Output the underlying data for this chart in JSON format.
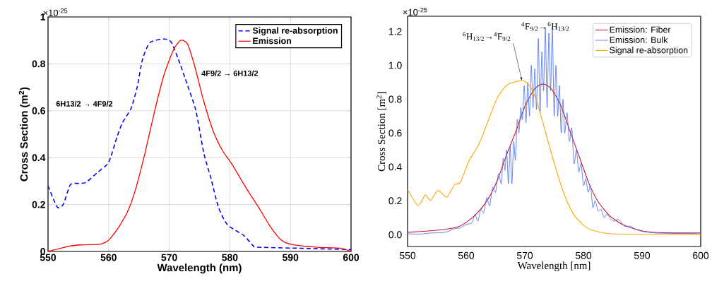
{
  "chart_data": [
    {
      "type": "line",
      "xlabel": "Wavelength (nm)",
      "ylabel": "Cross Section (m$^{2}$)",
      "xlim": [
        550,
        600
      ],
      "ylim": [
        0,
        1
      ],
      "xticks": [
        550,
        560,
        570,
        580,
        590,
        600
      ],
      "yticks": [
        0,
        0.2,
        0.4,
        0.6,
        0.8,
        1
      ],
      "grid": true,
      "legend": "top right",
      "marker": "none",
      "annotations": [
        "×10$^{-25}$",
        "6H13/2 → 4F9/2",
        "4F9/2 → 6H13/2"
      ],
      "series": [
        {
          "name": "Signal re-absorption",
          "color": "#0000ff",
          "line_style": "dashed",
          "x": [
            550,
            551.5,
            552.5,
            553.7,
            555.2,
            556.3,
            558.3,
            560,
            561.4,
            562.3,
            563.7,
            564.7,
            565.6,
            566.8,
            569.1,
            570.3,
            571.5,
            573,
            574.4,
            575.7,
            576.9,
            578.1,
            579.6,
            582.3,
            583.9,
            584.7,
            592.4,
            600
          ],
          "values": [
            0.28,
            0.19,
            0.2,
            0.285,
            0.29,
            0.295,
            0.34,
            0.38,
            0.49,
            0.55,
            0.61,
            0.7,
            0.82,
            0.89,
            0.906,
            0.894,
            0.82,
            0.71,
            0.6,
            0.42,
            0.31,
            0.19,
            0.114,
            0.068,
            0.023,
            0.018,
            0.013,
            0.008
          ]
        },
        {
          "name": "Emission",
          "color": "#ff0000",
          "line_style": "solid",
          "x": [
            550,
            553.6,
            555.6,
            558.3,
            559.4,
            560.2,
            561.8,
            563.3,
            564.5,
            566,
            567.6,
            569.1,
            570.7,
            571.9,
            573,
            574.2,
            575.7,
            577.3,
            578.8,
            580.4,
            582.7,
            584.7,
            586.6,
            588.5,
            590.5,
            594.4,
            598.3,
            600
          ],
          "values": [
            0,
            0.023,
            0.028,
            0.03,
            0.038,
            0.053,
            0.109,
            0.18,
            0.27,
            0.42,
            0.6,
            0.75,
            0.86,
            0.9,
            0.885,
            0.79,
            0.64,
            0.51,
            0.43,
            0.37,
            0.27,
            0.19,
            0.109,
            0.048,
            0.028,
            0.018,
            0.013,
            0
          ]
        }
      ]
    },
    {
      "type": "line",
      "xlabel": "Wavelength [nm]",
      "ylabel": "Cross Section [m$^{2}$]",
      "xlim": [
        550,
        600
      ],
      "ylim": [
        -0.07,
        1.29
      ],
      "xticks": [
        550,
        560,
        570,
        580,
        590,
        600
      ],
      "yticks": [
        {
          "value": 0,
          "label": "0.0"
        },
        0.2,
        0.4,
        0.6,
        0.8,
        {
          "value": 1,
          "label": "1.0"
        },
        1.2
      ],
      "grid": false,
      "legend": "top right",
      "marker": "none",
      "annotations": [
        "×10$^{-25}$",
        {
          "text": "$^{6}$H$_{13/2}$→$^{4}$F$_{9/2}$",
          "x": 569.5,
          "y": 0.91
        },
        "$^{4}$F$_{9/2}$→$^{6}$H$_{13/2}$"
      ],
      "series": [
        {
          "name": "Emission: Fiber",
          "color": "#d0103a",
          "line_style": "solid",
          "x": [
            550,
            553.2,
            556.4,
            558.8,
            560.4,
            562,
            563.7,
            565.3,
            566.9,
            568.5,
            570.1,
            571.7,
            573.1,
            574.5,
            576.1,
            577.7,
            579.3,
            580.9,
            582.5,
            584.5,
            586.9,
            590.2,
            594.2,
            600
          ],
          "values": [
            0.014,
            0.021,
            0.031,
            0.049,
            0.083,
            0.132,
            0.209,
            0.32,
            0.473,
            0.612,
            0.765,
            0.862,
            0.89,
            0.862,
            0.765,
            0.612,
            0.459,
            0.306,
            0.195,
            0.111,
            0.056,
            0.021,
            0.011,
            0.01
          ]
        },
        {
          "name": "Emission: Bulk",
          "color": "#4169e1",
          "line_style": "solid",
          "x": [
            550,
            552,
            554,
            556,
            557,
            558,
            559,
            560,
            561,
            561.5,
            562,
            562.5,
            563,
            563.5,
            564,
            564.5,
            565,
            565.5,
            566,
            566.3,
            566.6,
            566.9,
            567.2,
            567.5,
            567.8,
            568.1,
            568.4,
            568.7,
            569,
            569.3,
            569.6,
            569.9,
            570.2,
            570.5,
            570.8,
            571.1,
            571.4,
            571.7,
            572,
            572.3,
            572.6,
            572.9,
            573.2,
            573.5,
            573.8,
            574.1,
            574.4,
            574.7,
            575,
            575.3,
            575.6,
            575.9,
            576.2,
            576.5,
            576.8,
            577.2,
            577.6,
            578,
            578.4,
            578.8,
            579.2,
            579.6,
            580,
            580.4,
            580.8,
            581.2,
            581.6,
            582,
            582.5,
            583,
            583.5,
            584,
            585,
            586,
            587,
            588,
            589,
            590,
            592,
            595,
            600
          ],
          "values": [
            0.005,
            0.003,
            0.01,
            0.012,
            0.02,
            0.035,
            0.04,
            0.06,
            0.07,
            0.12,
            0.08,
            0.15,
            0.13,
            0.22,
            0.17,
            0.28,
            0.25,
            0.36,
            0.3,
            0.45,
            0.38,
            0.5,
            0.3,
            0.52,
            0.3,
            0.55,
            0.44,
            0.68,
            0.6,
            0.75,
            0.68,
            0.88,
            0.66,
            0.9,
            0.7,
            1.0,
            0.75,
            0.98,
            0.74,
            1.16,
            0.72,
            1.08,
            0.85,
            1.22,
            0.75,
            1.19,
            0.85,
            1.22,
            0.7,
            1.0,
            0.7,
            0.88,
            0.6,
            0.8,
            0.6,
            0.72,
            0.55,
            0.63,
            0.42,
            0.5,
            0.37,
            0.42,
            0.29,
            0.33,
            0.25,
            0.29,
            0.16,
            0.2,
            0.14,
            0.15,
            0.1,
            0.12,
            0.08,
            0.09,
            0.05,
            0.05,
            0.03,
            0.02,
            0.01,
            0.008,
            0.005
          ]
        },
        {
          "name": "Signal re-absorption",
          "color": "#ffa500",
          "line_style": "solid",
          "x": [
            550,
            551.8,
            553,
            553.9,
            555.2,
            556.7,
            558,
            559,
            560.4,
            562.2,
            563.7,
            565.3,
            566.9,
            568.5,
            569.7,
            570.9,
            572.1,
            573.7,
            575.3,
            576.9,
            578.5,
            580.5,
            582.9,
            586.1,
            600
          ],
          "values": [
            0.267,
            0.171,
            0.234,
            0.202,
            0.261,
            0.222,
            0.295,
            0.309,
            0.431,
            0.535,
            0.668,
            0.807,
            0.883,
            0.904,
            0.911,
            0.876,
            0.779,
            0.584,
            0.389,
            0.222,
            0.111,
            0.042,
            0.014,
            0.003,
            0
          ]
        }
      ]
    }
  ]
}
